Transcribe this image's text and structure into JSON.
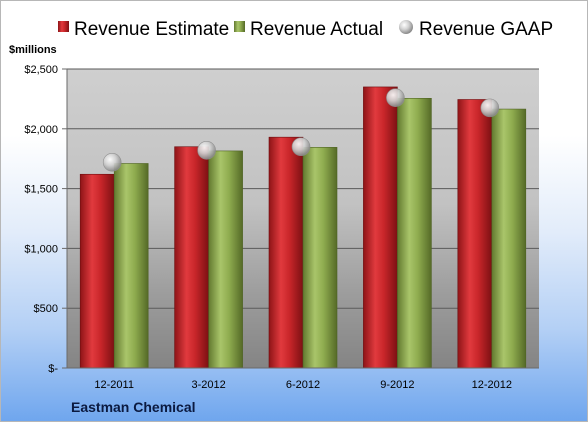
{
  "chart_data": {
    "type": "bar",
    "categories": [
      "12-2011",
      "3-2012",
      "6-2012",
      "9-2012",
      "12-2012"
    ],
    "series": [
      {
        "name": "Revenue Estimate",
        "kind": "bar",
        "color": "#c0282c",
        "values": [
          1620,
          1850,
          1930,
          2350,
          2245
        ]
      },
      {
        "name": "Revenue Actual",
        "kind": "bar",
        "color": "#8fac4f",
        "values": [
          1710,
          1815,
          1845,
          2255,
          2165
        ]
      },
      {
        "name": "Revenue GAAP",
        "kind": "marker",
        "color": "#bfbfbf",
        "values": [
          1720,
          1820,
          1850,
          2260,
          2175
        ]
      }
    ],
    "ylabel": "$millions",
    "ylim": [
      0,
      2500
    ],
    "yticks": [
      0,
      500,
      1000,
      1500,
      2000,
      2500
    ],
    "ytick_labels": [
      "$-",
      "$500",
      "$1,000",
      "$1,500",
      "$2,000",
      "$2,500"
    ],
    "grid": true,
    "legend_position": "top"
  },
  "footer": {
    "company": "Eastman Chemical"
  }
}
